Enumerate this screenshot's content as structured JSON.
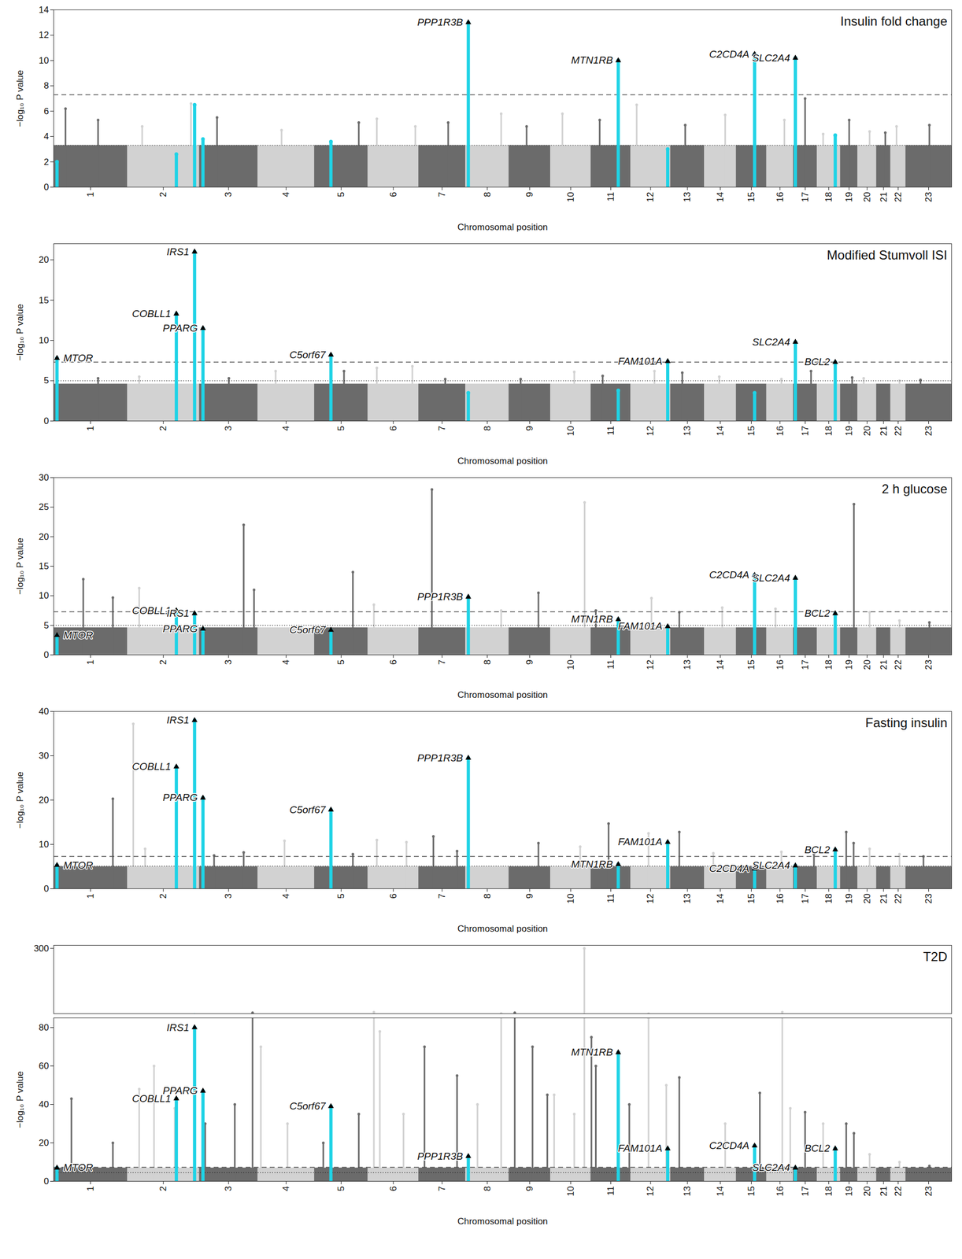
{
  "chart_data": [
    {
      "type": "manhattan",
      "title": "Insulin fold change",
      "x_label": "Chromosomal position",
      "y_label": "−log₁₀ P value",
      "categories": [
        "1",
        "2",
        "3",
        "4",
        "5",
        "6",
        "7",
        "8",
        "9",
        "10",
        "11",
        "12",
        "13",
        "14",
        "15",
        "16",
        "17",
        "18",
        "19",
        "20",
        "21",
        "22",
        "23"
      ],
      "chromosome_lengths": [
        249,
        243,
        198,
        191,
        181,
        171,
        159,
        146,
        141,
        136,
        135,
        134,
        115,
        107,
        103,
        90,
        81,
        78,
        59,
        63,
        48,
        51,
        155
      ],
      "ylim": [
        0,
        14
      ],
      "yticks": [
        0,
        2,
        4,
        6,
        8,
        10,
        12,
        14
      ],
      "thresholds": {
        "genome_wide": 7.3,
        "suggestive": 3.3
      },
      "colors": [
        "#6b6b6b",
        "#d2d2d2"
      ],
      "bulk": 3.3,
      "background": {
        "chr": [
          "1",
          "1",
          "2",
          "2",
          "3",
          "4",
          "5",
          "6",
          "6",
          "7",
          "8",
          "9",
          "10",
          "11",
          "12",
          "13",
          "14",
          "16",
          "17",
          "18",
          "19",
          "20",
          "21",
          "22",
          "23"
        ],
        "pos": [
          40,
          150,
          50,
          215,
          60,
          80,
          150,
          30,
          160,
          100,
          120,
          60,
          40,
          30,
          20,
          50,
          70,
          60,
          40,
          20,
          30,
          40,
          30,
          20,
          80
        ],
        "values": [
          6.2,
          5.3,
          4.8,
          6.6,
          5.5,
          4.5,
          5.1,
          5.4,
          4.8,
          5.1,
          5.8,
          4.8,
          5.8,
          5.3,
          6.5,
          4.9,
          5.7,
          5.3,
          7.0,
          4.2,
          5.3,
          4.4,
          4.3,
          4.8,
          4.9
        ]
      },
      "loci": {
        "labels": [
          null,
          null,
          null,
          null,
          null,
          "PPP1R3B",
          "MTN1RB",
          null,
          "C2CD4A",
          "SLC2A4",
          null
        ],
        "chr": [
          "1",
          "2",
          "2",
          "3",
          "5",
          "8",
          "11",
          "12",
          "15",
          "17",
          "18"
        ],
        "pos": [
          11.2,
          165.5,
          227.1,
          12.4,
          55.8,
          9.0,
          92.7,
          124.8,
          62.4,
          7.2,
          60.9
        ],
        "values": [
          2.0,
          2.6,
          6.5,
          3.8,
          3.6,
          13.0,
          10.0,
          3.0,
          10.5,
          10.2,
          4.1
        ],
        "color": "#1fd3e6"
      }
    },
    {
      "type": "manhattan",
      "title": "Modified Stumvoll ISI",
      "x_label": "Chromosomal position",
      "y_label": "−log₁₀ P value",
      "categories": [
        "1",
        "2",
        "3",
        "4",
        "5",
        "6",
        "7",
        "8",
        "9",
        "10",
        "11",
        "12",
        "13",
        "14",
        "15",
        "16",
        "17",
        "18",
        "19",
        "20",
        "21",
        "22",
        "23"
      ],
      "chromosome_lengths": [
        249,
        243,
        198,
        191,
        181,
        171,
        159,
        146,
        141,
        136,
        135,
        134,
        115,
        107,
        103,
        90,
        81,
        78,
        59,
        63,
        48,
        51,
        155
      ],
      "ylim": [
        0,
        22
      ],
      "yticks": [
        0,
        5,
        10,
        15,
        20
      ],
      "thresholds": {
        "genome_wide": 7.3,
        "suggestive": 5
      },
      "colors": [
        "#6b6b6b",
        "#d2d2d2"
      ],
      "bulk": 4.6,
      "background": {
        "chr": [
          "1",
          "2",
          "3",
          "4",
          "5",
          "6",
          "6",
          "7",
          "9",
          "10",
          "11",
          "12",
          "13",
          "14",
          "16",
          "17",
          "19",
          "20",
          "22",
          "23"
        ],
        "pos": [
          150,
          40,
          100,
          60,
          100,
          30,
          150,
          90,
          40,
          80,
          40,
          80,
          40,
          50,
          50,
          60,
          40,
          20,
          30,
          50
        ],
        "values": [
          5.3,
          5.5,
          5.3,
          6.2,
          6.2,
          6.6,
          6.8,
          5.2,
          5.2,
          6.1,
          5.6,
          6.2,
          6.0,
          5.5,
          5.2,
          6.2,
          5.4,
          5.3,
          5.0,
          5.1
        ]
      },
      "loci": {
        "labels": [
          "MTOR",
          "COBLL1",
          "IRS1",
          "PPARG",
          "C5orf67",
          null,
          null,
          "FAM101A",
          null,
          "SLC2A4",
          "BCL2"
        ],
        "chr": [
          "1",
          "2",
          "2",
          "3",
          "5",
          "8",
          "11",
          "12",
          "15",
          "17",
          "18"
        ],
        "pos": [
          11.2,
          165.5,
          227.1,
          12.4,
          55.8,
          9.0,
          92.7,
          124.8,
          62.4,
          7.2,
          60.9
        ],
        "values": [
          7.8,
          13.3,
          21.0,
          11.5,
          8.2,
          3.5,
          3.8,
          7.4,
          3.5,
          9.8,
          7.3
        ],
        "color": "#1fd3e6"
      }
    },
    {
      "type": "manhattan",
      "title": "2 h glucose",
      "x_label": "Chromosomal position",
      "y_label": "−log₁₀ P value",
      "categories": [
        "1",
        "2",
        "3",
        "4",
        "5",
        "6",
        "7",
        "8",
        "9",
        "10",
        "11",
        "12",
        "13",
        "14",
        "15",
        "16",
        "17",
        "18",
        "19",
        "20",
        "21",
        "22",
        "23"
      ],
      "chromosome_lengths": [
        249,
        243,
        198,
        191,
        181,
        171,
        159,
        146,
        141,
        136,
        135,
        134,
        115,
        107,
        103,
        90,
        81,
        78,
        59,
        63,
        48,
        51,
        155
      ],
      "ylim": [
        0,
        30
      ],
      "yticks": [
        0,
        5,
        10,
        15,
        20,
        25,
        30
      ],
      "thresholds": {
        "genome_wide": 7.3,
        "suggestive": 5
      },
      "colors": [
        "#6b6b6b",
        "#d2d2d2"
      ],
      "bulk": 4.6,
      "background": {
        "chr": [
          "1",
          "1",
          "2",
          "3",
          "3",
          "5",
          "6",
          "7",
          "8",
          "9",
          "10",
          "11",
          "12",
          "13",
          "14",
          "16",
          "19",
          "20",
          "22",
          "23"
        ],
        "pos": [
          100,
          200,
          40,
          150,
          185,
          130,
          20,
          45,
          120,
          100,
          115,
          17,
          70,
          30,
          60,
          30,
          46,
          40,
          30,
          80
        ],
        "values": [
          12.8,
          9.7,
          11.3,
          22.0,
          11.0,
          14.0,
          8.5,
          28.0,
          7.5,
          10.5,
          25.8,
          7.5,
          9.6,
          7.2,
          8.0,
          7.8,
          25.5,
          7.2,
          5.8,
          5.5
        ]
      },
      "loci": {
        "labels": [
          "MTOR",
          "COBLL1",
          "IRS1",
          "PPARG",
          "C5orf67",
          "PPP1R3B",
          "MTN1RB",
          "FAM101A",
          "C2CD4A",
          "SLC2A4",
          "BCL2"
        ],
        "chr": [
          "1",
          "2",
          "2",
          "3",
          "5",
          "8",
          "11",
          "12",
          "15",
          "17",
          "18"
        ],
        "pos": [
          11.2,
          165.5,
          227.1,
          12.4,
          55.8,
          9.0,
          92.7,
          124.8,
          62.4,
          7.2,
          60.9
        ],
        "values": [
          3.3,
          7.5,
          7.0,
          4.4,
          4.2,
          9.8,
          6.0,
          4.8,
          13.5,
          13.0,
          7.0
        ],
        "color": "#1fd3e6"
      }
    },
    {
      "type": "manhattan",
      "title": "Fasting insulin",
      "x_label": "Chromosomal position",
      "y_label": "−log₁₀ P value",
      "categories": [
        "1",
        "2",
        "3",
        "4",
        "5",
        "6",
        "7",
        "8",
        "9",
        "10",
        "11",
        "12",
        "13",
        "14",
        "15",
        "16",
        "17",
        "18",
        "19",
        "20",
        "21",
        "22",
        "23"
      ],
      "chromosome_lengths": [
        249,
        243,
        198,
        191,
        181,
        171,
        159,
        146,
        141,
        136,
        135,
        134,
        115,
        107,
        103,
        90,
        81,
        78,
        59,
        63,
        48,
        51,
        155
      ],
      "ylim": [
        0,
        40
      ],
      "yticks": [
        0,
        10,
        20,
        30,
        40
      ],
      "thresholds": {
        "genome_wide": 7.3,
        "suggestive": 5.1
      },
      "colors": [
        "#6b6b6b",
        "#d2d2d2"
      ],
      "bulk": 5,
      "background": {
        "chr": [
          "1",
          "2",
          "2",
          "3",
          "3",
          "4",
          "5",
          "6",
          "6",
          "7",
          "7",
          "9",
          "10",
          "11",
          "12",
          "13",
          "14",
          "16",
          "17",
          "18",
          "19",
          "19",
          "20",
          "22",
          "23"
        ],
        "pos": [
          200,
          20,
          60,
          50,
          150,
          90,
          130,
          30,
          130,
          50,
          130,
          100,
          100,
          60,
          60,
          30,
          30,
          50,
          70,
          60,
          20,
          45,
          40,
          30,
          60
        ],
        "values": [
          20.3,
          37.2,
          9.0,
          7.5,
          8.2,
          10.8,
          7.8,
          11.0,
          10.5,
          11.8,
          8.5,
          10.3,
          9.5,
          14.7,
          12.5,
          12.8,
          8.0,
          8.3,
          7.8,
          8.8,
          12.8,
          10.3,
          9.0,
          7.8,
          7.3
        ]
      },
      "loci": {
        "labels": [
          "MTOR",
          "COBLL1",
          "IRS1",
          "PPARG",
          "C5orf67",
          "PPP1R3B",
          "MTN1RB",
          "FAM101A",
          "C2CD4A",
          "SLC2A4",
          "BCL2"
        ],
        "chr": [
          "1",
          "2",
          "2",
          "3",
          "5",
          "8",
          "11",
          "12",
          "15",
          "17",
          "18"
        ],
        "pos": [
          11.2,
          165.5,
          227.1,
          12.4,
          55.8,
          9.0,
          92.7,
          124.8,
          62.4,
          7.2,
          60.9
        ],
        "values": [
          5.3,
          27.5,
          38.0,
          20.5,
          17.8,
          29.5,
          5.5,
          10.5,
          4.5,
          5.2,
          8.8
        ],
        "color": "#1fd3e6"
      }
    },
    {
      "type": "manhattan",
      "title": "T2D",
      "x_label": "Chromosomal position",
      "y_label": "−log₁₀ P value",
      "categories": [
        "1",
        "2",
        "3",
        "4",
        "5",
        "6",
        "7",
        "8",
        "9",
        "10",
        "11",
        "12",
        "13",
        "14",
        "15",
        "16",
        "17",
        "18",
        "19",
        "20",
        "21",
        "22",
        "23"
      ],
      "chromosome_lengths": [
        249,
        243,
        198,
        191,
        181,
        171,
        159,
        146,
        141,
        136,
        135,
        134,
        115,
        107,
        103,
        90,
        81,
        78,
        59,
        63,
        48,
        51,
        155
      ],
      "ylim": [
        0,
        310
      ],
      "axis_break": 85,
      "yticks": [
        0,
        20,
        40,
        60,
        80,
        300
      ],
      "thresholds": {
        "genome_wide": 7.3,
        "suggestive": 4.5
      },
      "colors": [
        "#6b6b6b",
        "#d2d2d2"
      ],
      "bulk": 7,
      "background": {
        "chr": [
          "1",
          "1",
          "2",
          "2",
          "2",
          "3",
          "3",
          "3",
          "4",
          "4",
          "5",
          "5",
          "6",
          "6",
          "6",
          "7",
          "7",
          "8",
          "8",
          "9",
          "9",
          "9",
          "10",
          "10",
          "10",
          "11",
          "11",
          "11",
          "12",
          "12",
          "13",
          "14",
          "15",
          "16",
          "16",
          "17",
          "18",
          "19",
          "19",
          "20",
          "22",
          "23"
        ],
        "pos": [
          60,
          200,
          40,
          90,
          160,
          20,
          120,
          180,
          10,
          100,
          30,
          150,
          20,
          40,
          120,
          20,
          130,
          40,
          120,
          20,
          80,
          130,
          12,
          80,
          114,
          2,
          17,
          130,
          60,
          120,
          30,
          70,
          80,
          53,
          80,
          40,
          20,
          20,
          46,
          40,
          30,
          80
        ],
        "values": [
          43,
          20,
          48,
          60,
          38,
          30,
          40,
          88,
          70,
          30,
          20,
          35,
          90,
          78,
          35,
          70,
          55,
          40,
          86,
          88,
          70,
          45,
          45,
          35,
          300,
          75,
          60,
          40,
          85,
          50,
          54,
          30,
          46,
          90,
          38,
          36,
          30,
          30,
          25,
          14,
          10,
          8
        ]
      },
      "loci": {
        "labels": [
          "MTOR",
          "COBLL1",
          "IRS1",
          "PPARG",
          "C5orf67",
          "PPP1R3B",
          "MTN1RB",
          "FAM101A",
          "C2CD4A",
          "SLC2A4",
          "BCL2"
        ],
        "chr": [
          "1",
          "2",
          "2",
          "3",
          "5",
          "8",
          "11",
          "12",
          "15",
          "17",
          "18"
        ],
        "pos": [
          11.2,
          165.5,
          227.1,
          12.4,
          55.8,
          9.0,
          92.7,
          124.8,
          62.4,
          7.2,
          60.9
        ],
        "values": [
          7,
          43,
          80,
          47,
          39,
          13,
          67,
          17,
          18.5,
          7,
          17
        ],
        "color": "#1fd3e6"
      }
    }
  ]
}
